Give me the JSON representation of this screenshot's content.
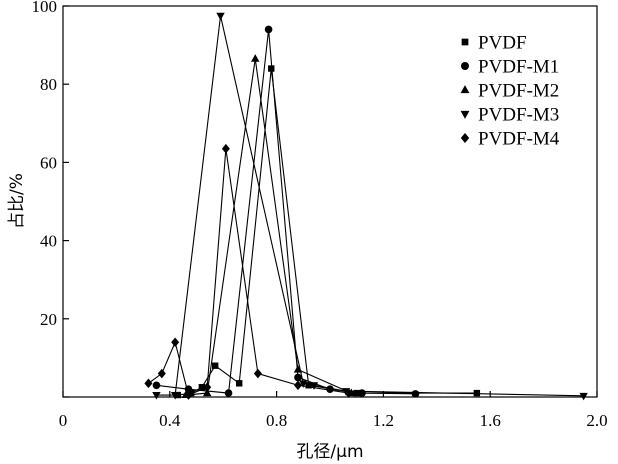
{
  "chart_data": {
    "type": "line",
    "xlabel": "孔径/μm",
    "ylabel": "占比/%",
    "xlim": [
      0,
      2.0
    ],
    "ylim": [
      0,
      100
    ],
    "x_ticks": [
      "0",
      "0.4",
      "0.8",
      "1.2",
      "1.6",
      "2.0"
    ],
    "y_ticks": [
      "0",
      "20",
      "40",
      "60",
      "80",
      "100"
    ],
    "x_tick_values": [
      0,
      0.4,
      0.8,
      1.2,
      1.6,
      2.0
    ],
    "y_tick_values": [
      0,
      20,
      40,
      60,
      80,
      100
    ],
    "grid": false,
    "legend_position": "top-right",
    "series": [
      {
        "name": "PVDF",
        "marker": "square",
        "x": [
          0.43,
          0.48,
          0.52,
          0.57,
          0.66,
          0.78,
          0.92,
          1.1,
          1.55
        ],
        "y": [
          0.5,
          1.0,
          2.5,
          8.0,
          3.5,
          84.0,
          3.0,
          1.0,
          1.0
        ]
      },
      {
        "name": "PVDF-M1",
        "marker": "circle",
        "x": [
          0.35,
          0.47,
          0.62,
          0.77,
          0.88,
          1.0,
          1.12,
          1.32
        ],
        "y": [
          3.0,
          2.0,
          1.0,
          94.0,
          5.0,
          2.0,
          1.0,
          0.8
        ]
      },
      {
        "name": "PVDF-M2",
        "marker": "triangle-up",
        "x": [
          0.46,
          0.54,
          0.72,
          0.88,
          1.08
        ],
        "y": [
          0.5,
          1.0,
          86.5,
          7.0,
          1.0
        ]
      },
      {
        "name": "PVDF-M3",
        "marker": "triangle-down",
        "x": [
          0.35,
          0.42,
          0.59,
          0.9,
          0.94,
          1.06,
          1.95
        ],
        "y": [
          0.5,
          0.5,
          97.5,
          3.5,
          3.0,
          1.5,
          0.3
        ]
      },
      {
        "name": "PVDF-M4",
        "marker": "diamond",
        "x": [
          0.32,
          0.37,
          0.42,
          0.47,
          0.54,
          0.61,
          0.73,
          0.88,
          1.07
        ],
        "y": [
          3.5,
          6.0,
          14.0,
          0.5,
          2.5,
          63.5,
          6.0,
          3.0,
          1.0
        ]
      }
    ]
  }
}
